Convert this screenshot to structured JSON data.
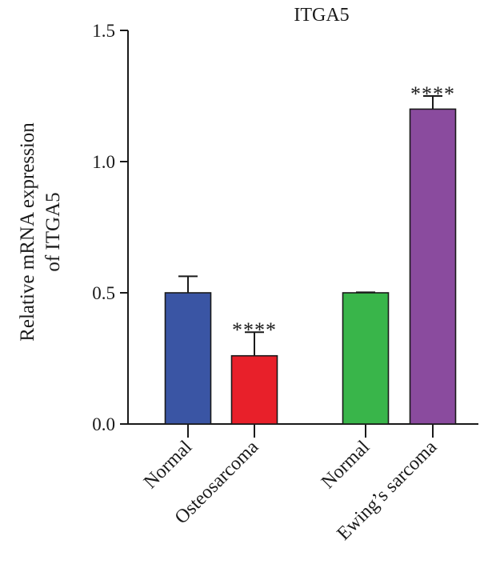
{
  "chart_data": {
    "type": "bar",
    "title": "ITGA5",
    "ylabel": "Relative mRNA expression of ITGA5",
    "ylabel_lines": [
      "Relative mRNA expression",
      "of ITGA5"
    ],
    "xlabel": "",
    "ylim": [
      0,
      1.5
    ],
    "yticks": [
      0.0,
      0.5,
      1.0,
      1.5
    ],
    "ytick_labels": [
      "0.0",
      "0.5",
      "1.0",
      "1.5"
    ],
    "grid": false,
    "categories": [
      "Normal",
      "Osteosarcoma",
      "Normal",
      "Ewing’s sarcoma"
    ],
    "groups": [
      {
        "categories": [
          0,
          1
        ]
      },
      {
        "categories": [
          2,
          3
        ]
      }
    ],
    "values": [
      0.5,
      0.26,
      0.5,
      1.2
    ],
    "errors": [
      0.063,
      0.09,
      0.002,
      0.05
    ],
    "colors": [
      "#3a55a4",
      "#e8202a",
      "#39b54a",
      "#8a4b9e"
    ],
    "significance": [
      "",
      "****",
      "",
      "****"
    ]
  }
}
